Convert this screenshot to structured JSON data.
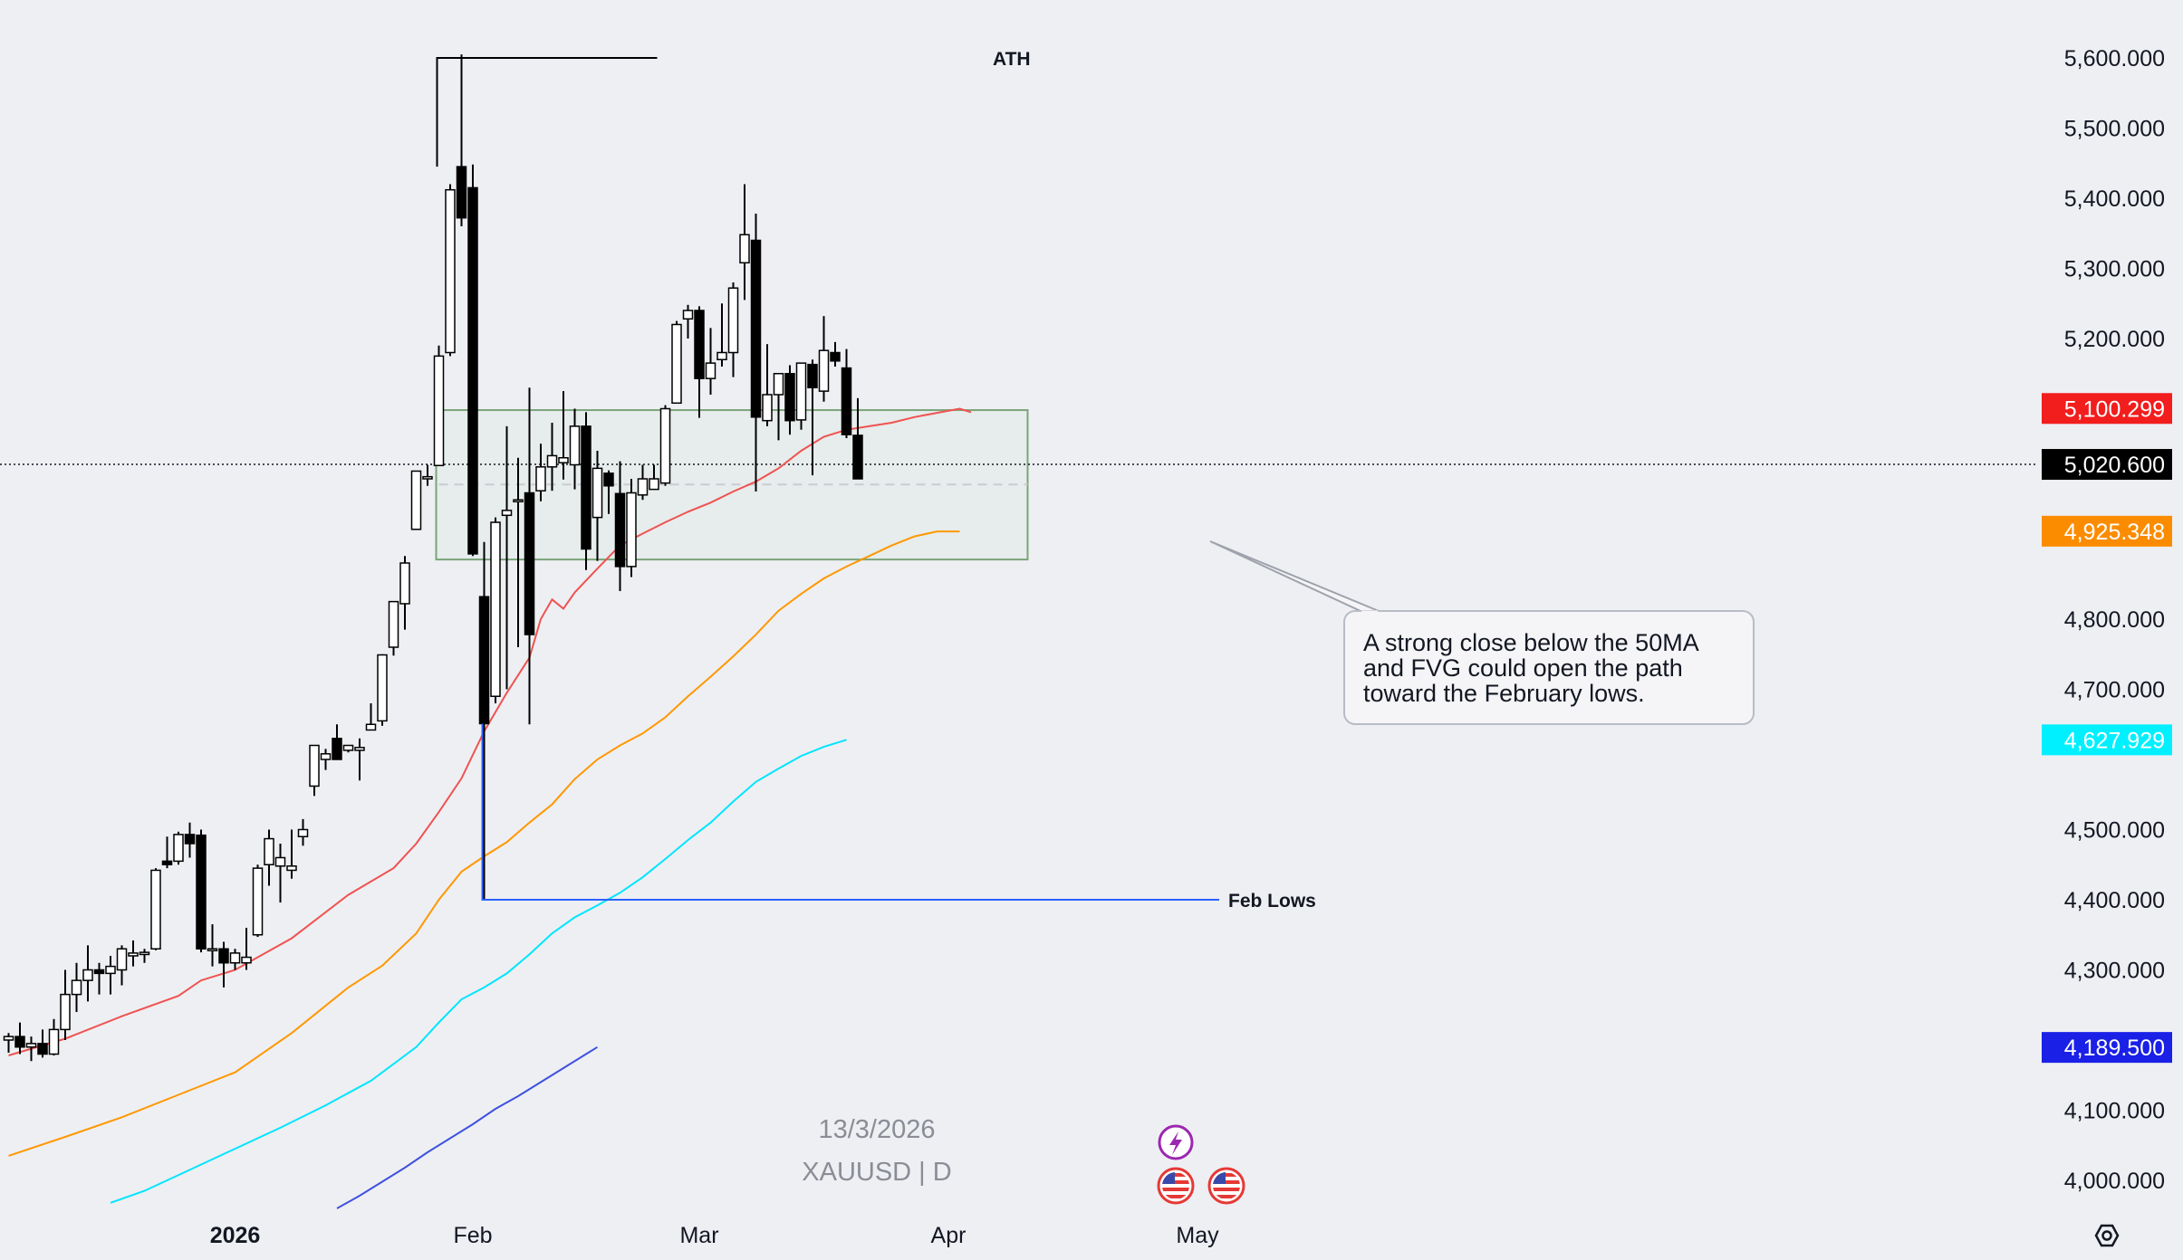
{
  "chart_data": {
    "type": "candlestick",
    "symbol": "XAUUSD | D",
    "date_label": "13/3/2026",
    "y_axis": {
      "ticks": [
        "5,600.000",
        "5,500.000",
        "5,400.000",
        "5,300.000",
        "5,200.000",
        "4,800.000",
        "4,700.000",
        "4,500.000",
        "4,400.000",
        "4,300.000",
        "4,100.000",
        "4,000.000"
      ],
      "ylim": [
        3970,
        5650
      ]
    },
    "x_axis": {
      "ticks": [
        {
          "label": "2026",
          "index": 20
        },
        {
          "label": "Feb",
          "index": 41
        },
        {
          "label": "Mar",
          "index": 61
        },
        {
          "label": "Apr",
          "index": 83
        },
        {
          "label": "May",
          "index": 105
        }
      ]
    },
    "candles": [
      {
        "o": 4200,
        "h": 4210,
        "l": 4182,
        "c": 4205
      },
      {
        "o": 4205,
        "h": 4225,
        "l": 4180,
        "c": 4190
      },
      {
        "o": 4190,
        "h": 4205,
        "l": 4170,
        "c": 4195
      },
      {
        "o": 4195,
        "h": 4215,
        "l": 4175,
        "c": 4180
      },
      {
        "o": 4180,
        "h": 4230,
        "l": 4178,
        "c": 4215
      },
      {
        "o": 4215,
        "h": 4300,
        "l": 4200,
        "c": 4265
      },
      {
        "o": 4265,
        "h": 4310,
        "l": 4240,
        "c": 4285
      },
      {
        "o": 4285,
        "h": 4335,
        "l": 4255,
        "c": 4300
      },
      {
        "o": 4300,
        "h": 4310,
        "l": 4265,
        "c": 4295
      },
      {
        "o": 4295,
        "h": 4320,
        "l": 4265,
        "c": 4305
      },
      {
        "o": 4300,
        "h": 4335,
        "l": 4278,
        "c": 4330
      },
      {
        "o": 4320,
        "h": 4342,
        "l": 4305,
        "c": 4324
      },
      {
        "o": 4322,
        "h": 4330,
        "l": 4310,
        "c": 4325
      },
      {
        "o": 4330,
        "h": 4445,
        "l": 4328,
        "c": 4442
      },
      {
        "o": 4455,
        "h": 4490,
        "l": 4445,
        "c": 4450
      },
      {
        "o": 4455,
        "h": 4497,
        "l": 4450,
        "c": 4493
      },
      {
        "o": 4493,
        "h": 4510,
        "l": 4460,
        "c": 4480
      },
      {
        "o": 4492,
        "h": 4500,
        "l": 4325,
        "c": 4330
      },
      {
        "o": 4330,
        "h": 4365,
        "l": 4305,
        "c": 4330
      },
      {
        "o": 4330,
        "h": 4340,
        "l": 4275,
        "c": 4310
      },
      {
        "o": 4310,
        "h": 4330,
        "l": 4300,
        "c": 4324
      },
      {
        "o": 4310,
        "h": 4360,
        "l": 4300,
        "c": 4318
      },
      {
        "o": 4350,
        "h": 4450,
        "l": 4347,
        "c": 4445
      },
      {
        "o": 4450,
        "h": 4500,
        "l": 4420,
        "c": 4487
      },
      {
        "o": 4448,
        "h": 4480,
        "l": 4396,
        "c": 4460
      },
      {
        "o": 4442,
        "h": 4500,
        "l": 4430,
        "c": 4448
      },
      {
        "o": 4490,
        "h": 4515,
        "l": 4477,
        "c": 4500
      },
      {
        "o": 4562,
        "h": 4615,
        "l": 4548,
        "c": 4620
      },
      {
        "o": 4600,
        "h": 4615,
        "l": 4585,
        "c": 4608
      },
      {
        "o": 4630,
        "h": 4650,
        "l": 4600,
        "c": 4600
      },
      {
        "o": 4613,
        "h": 4620,
        "l": 4610,
        "c": 4620
      },
      {
        "o": 4613,
        "h": 4630,
        "l": 4570,
        "c": 4617
      },
      {
        "o": 4642,
        "h": 4680,
        "l": 4643,
        "c": 4650
      },
      {
        "o": 4655,
        "h": 4750,
        "l": 4648,
        "c": 4749
      },
      {
        "o": 4760,
        "h": 4820,
        "l": 4748,
        "c": 4825
      },
      {
        "o": 4822,
        "h": 4890,
        "l": 4785,
        "c": 4880
      },
      {
        "o": 4928,
        "h": 5000,
        "l": 4940,
        "c": 5011
      },
      {
        "o": 5000,
        "h": 5020,
        "l": 4990,
        "c": 5003
      },
      {
        "o": 5019,
        "h": 5190,
        "l": 5020,
        "c": 5175
      },
      {
        "o": 5180,
        "h": 5420,
        "l": 5175,
        "c": 5412
      },
      {
        "o": 5445,
        "h": 5605,
        "l": 5360,
        "c": 5372
      },
      {
        "o": 5415,
        "h": 5448,
        "l": 4890,
        "c": 4893
      },
      {
        "o": 4832,
        "h": 4910,
        "l": 4400,
        "c": 4651
      },
      {
        "o": 4690,
        "h": 4945,
        "l": 4680,
        "c": 4938
      },
      {
        "o": 4948,
        "h": 5075,
        "l": 4700,
        "c": 4955
      },
      {
        "o": 4970,
        "h": 5030,
        "l": 4760,
        "c": 4970
      },
      {
        "o": 4980,
        "h": 5130,
        "l": 4650,
        "c": 4778
      },
      {
        "o": 4983,
        "h": 5050,
        "l": 4968,
        "c": 5017
      },
      {
        "o": 5017,
        "h": 5080,
        "l": 4983,
        "c": 5033
      },
      {
        "o": 5023,
        "h": 5125,
        "l": 4999,
        "c": 5030
      },
      {
        "o": 5020,
        "h": 5100,
        "l": 4985,
        "c": 5075
      },
      {
        "o": 5075,
        "h": 5095,
        "l": 4870,
        "c": 4900
      },
      {
        "o": 4945,
        "h": 5040,
        "l": 4883,
        "c": 5015
      },
      {
        "o": 5008,
        "h": 5012,
        "l": 4950,
        "c": 4990
      },
      {
        "o": 4979,
        "h": 5025,
        "l": 4840,
        "c": 4875
      },
      {
        "o": 4875,
        "h": 5000,
        "l": 4860,
        "c": 4980
      },
      {
        "o": 4977,
        "h": 5020,
        "l": 4970,
        "c": 5000
      },
      {
        "o": 4985,
        "h": 5020,
        "l": 4985,
        "c": 5000
      },
      {
        "o": 4994,
        "h": 5105,
        "l": 4990,
        "c": 5100
      },
      {
        "o": 5108,
        "h": 5225,
        "l": 5108,
        "c": 5220
      },
      {
        "o": 5228,
        "h": 5248,
        "l": 5200,
        "c": 5240
      },
      {
        "o": 5240,
        "h": 5246,
        "l": 5087,
        "c": 5143
      },
      {
        "o": 5143,
        "h": 5215,
        "l": 5120,
        "c": 5165
      },
      {
        "o": 5170,
        "h": 5250,
        "l": 5160,
        "c": 5180
      },
      {
        "o": 5180,
        "h": 5280,
        "l": 5145,
        "c": 5272
      },
      {
        "o": 5308,
        "h": 5420,
        "l": 5255,
        "c": 5348
      },
      {
        "o": 5340,
        "h": 5378,
        "l": 4982,
        "c": 5088
      },
      {
        "o": 5083,
        "h": 5192,
        "l": 5075,
        "c": 5120
      },
      {
        "o": 5120,
        "h": 5143,
        "l": 5055,
        "c": 5150
      },
      {
        "o": 5150,
        "h": 5162,
        "l": 5063,
        "c": 5083
      },
      {
        "o": 5084,
        "h": 5165,
        "l": 5070,
        "c": 5165
      },
      {
        "o": 5163,
        "h": 5170,
        "l": 5005,
        "c": 5130
      },
      {
        "o": 5125,
        "h": 5232,
        "l": 5110,
        "c": 5183
      },
      {
        "o": 5180,
        "h": 5195,
        "l": 5160,
        "c": 5168
      },
      {
        "o": 5158,
        "h": 5185,
        "l": 5058,
        "c": 5063
      },
      {
        "o": 5062,
        "h": 5115,
        "l": 5000,
        "c": 5000
      }
    ],
    "series": [
      {
        "name": "",
        "color": "#ef5350",
        "value": 5100.299,
        "label": "5,100.299",
        "points": [
          [
            0,
            4178
          ],
          [
            5,
            4202
          ],
          [
            10,
            4234
          ],
          [
            15,
            4263
          ],
          [
            17,
            4285
          ],
          [
            20,
            4300
          ],
          [
            25,
            4345
          ],
          [
            30,
            4407
          ],
          [
            34,
            4445
          ],
          [
            36,
            4480
          ],
          [
            38,
            4525
          ],
          [
            40,
            4573
          ],
          [
            42,
            4640
          ],
          [
            44,
            4695
          ],
          [
            46,
            4745
          ],
          [
            47,
            4800
          ],
          [
            48,
            4828
          ],
          [
            49,
            4815
          ],
          [
            50,
            4838
          ],
          [
            52,
            4872
          ],
          [
            54,
            4905
          ],
          [
            56,
            4922
          ],
          [
            58,
            4938
          ],
          [
            60,
            4953
          ],
          [
            62,
            4966
          ],
          [
            64,
            4982
          ],
          [
            66,
            4996
          ],
          [
            68,
            5015
          ],
          [
            70,
            5040
          ],
          [
            72,
            5060
          ],
          [
            74,
            5070
          ],
          [
            76,
            5075
          ],
          [
            78,
            5080
          ],
          [
            80,
            5088
          ],
          [
            82,
            5094
          ],
          [
            84,
            5100
          ],
          [
            85,
            5095
          ]
        ]
      },
      {
        "name": "",
        "color": "#ff9800",
        "value": 4925.348,
        "label": "4,925.348",
        "points": [
          [
            0,
            4035
          ],
          [
            5,
            4062
          ],
          [
            10,
            4090
          ],
          [
            15,
            4122
          ],
          [
            20,
            4154
          ],
          [
            25,
            4210
          ],
          [
            30,
            4275
          ],
          [
            33,
            4306
          ],
          [
            36,
            4352
          ],
          [
            38,
            4400
          ],
          [
            40,
            4440
          ],
          [
            42,
            4462
          ],
          [
            44,
            4482
          ],
          [
            46,
            4510
          ],
          [
            48,
            4536
          ],
          [
            50,
            4572
          ],
          [
            52,
            4600
          ],
          [
            54,
            4620
          ],
          [
            56,
            4637
          ],
          [
            58,
            4660
          ],
          [
            60,
            4690
          ],
          [
            62,
            4718
          ],
          [
            64,
            4747
          ],
          [
            66,
            4778
          ],
          [
            68,
            4812
          ],
          [
            70,
            4836
          ],
          [
            72,
            4858
          ],
          [
            74,
            4875
          ],
          [
            76,
            4890
          ],
          [
            78,
            4905
          ],
          [
            80,
            4918
          ],
          [
            82,
            4925
          ],
          [
            84,
            4925
          ]
        ]
      },
      {
        "name": "",
        "color": "#00e5ff",
        "value": 4627.929,
        "label": "4,627.929",
        "points": [
          [
            9,
            3968
          ],
          [
            12,
            3985
          ],
          [
            16,
            4015
          ],
          [
            20,
            4045
          ],
          [
            24,
            4075
          ],
          [
            28,
            4107
          ],
          [
            32,
            4142
          ],
          [
            36,
            4190
          ],
          [
            38,
            4225
          ],
          [
            40,
            4258
          ],
          [
            42,
            4275
          ],
          [
            44,
            4295
          ],
          [
            46,
            4322
          ],
          [
            48,
            4352
          ],
          [
            50,
            4375
          ],
          [
            52,
            4392
          ],
          [
            54,
            4410
          ],
          [
            56,
            4432
          ],
          [
            58,
            4458
          ],
          [
            60,
            4485
          ],
          [
            62,
            4510
          ],
          [
            64,
            4540
          ],
          [
            66,
            4568
          ],
          [
            68,
            4587
          ],
          [
            70,
            4605
          ],
          [
            72,
            4618
          ],
          [
            74,
            4628
          ]
        ]
      },
      {
        "name": "",
        "color": "#3f51e0",
        "value": 4189.5,
        "label": "4,189.500",
        "points": [
          [
            29,
            3960
          ],
          [
            31,
            3978
          ],
          [
            33,
            3998
          ],
          [
            35,
            4018
          ],
          [
            37,
            4040
          ],
          [
            39,
            4060
          ],
          [
            41,
            4080
          ],
          [
            43,
            4102
          ],
          [
            45,
            4120
          ],
          [
            47,
            4140
          ],
          [
            49,
            4160
          ],
          [
            51,
            4180
          ],
          [
            52,
            4190
          ]
        ]
      }
    ],
    "current_price": {
      "value": 5020.6,
      "label": "5,020.600"
    },
    "fvg_zone": {
      "from_index": 38,
      "to_index": 90,
      "top": 5098,
      "bottom": 4885
    },
    "fvg_midline": 4992,
    "annotations": {
      "ath": {
        "label": "ATH",
        "price": 5600,
        "from_index": 38,
        "to_index": 56
      },
      "feb_lows": {
        "label": "Feb Lows",
        "price": 4400,
        "from_index": 40,
        "to_index": 70
      },
      "callout": {
        "lines": [
          "A strong close below the 50MA",
          "and FVG could open the path",
          "toward the February lows."
        ]
      }
    }
  }
}
